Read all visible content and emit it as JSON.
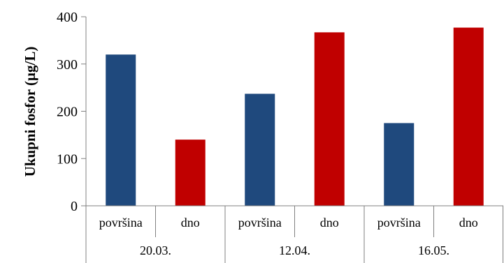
{
  "chart_data": {
    "type": "bar",
    "ylabel": "Ukupni fosfor (µg/L)",
    "xlabel": "",
    "ylim": [
      0,
      400
    ],
    "yticks": [
      0,
      100,
      200,
      300,
      400
    ],
    "grid": false,
    "groups": [
      {
        "label": "20.03.",
        "bars": [
          {
            "label": "površina",
            "value": 320,
            "color": "#1f497d"
          },
          {
            "label": "dno",
            "value": 140,
            "color": "#c00000"
          }
        ]
      },
      {
        "label": "12.04.",
        "bars": [
          {
            "label": "površina",
            "value": 237,
            "color": "#1f497d"
          },
          {
            "label": "dno",
            "value": 367,
            "color": "#c00000"
          }
        ]
      },
      {
        "label": "16.05.",
        "bars": [
          {
            "label": "površina",
            "value": 175,
            "color": "#1f497d"
          },
          {
            "label": "dno",
            "value": 377,
            "color": "#c00000"
          }
        ]
      }
    ]
  }
}
